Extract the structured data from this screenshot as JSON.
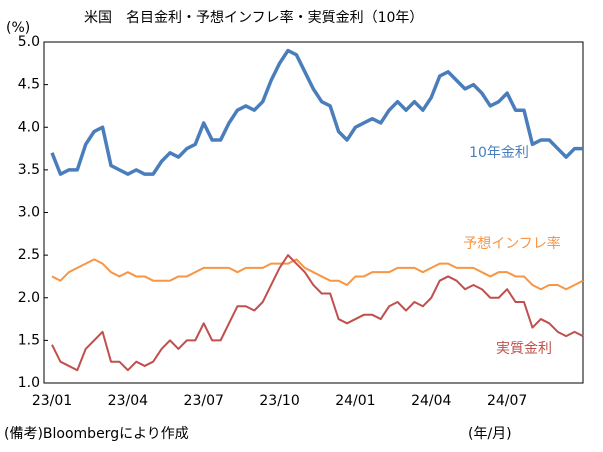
{
  "chart_data": {
    "type": "line",
    "title": "米国　名目金利・予想インフレ率・実質金利（10年）",
    "y_label": "(%)",
    "x_label": "(年/月)",
    "source": "(備考)Bloombergにより作成",
    "categories": [
      "23/01",
      null,
      null,
      null,
      null,
      null,
      null,
      null,
      null,
      "23/04",
      null,
      null,
      null,
      null,
      null,
      null,
      null,
      null,
      "23/07",
      null,
      null,
      null,
      null,
      null,
      null,
      null,
      null,
      "23/10",
      null,
      null,
      null,
      null,
      null,
      null,
      null,
      null,
      "24/01",
      null,
      null,
      null,
      null,
      null,
      null,
      null,
      null,
      "24/04",
      null,
      null,
      null,
      null,
      null,
      null,
      null,
      null,
      "24/07",
      null,
      null,
      null,
      null,
      null,
      null,
      null,
      null,
      null
    ],
    "ylim": [
      1.0,
      5.0
    ],
    "yticks": [
      {
        "value": 1.0,
        "label": "1.0"
      },
      1.5,
      {
        "value": 2.0,
        "label": "2.0"
      },
      2.5,
      {
        "value": 3.0,
        "label": "3.0"
      },
      3.5,
      {
        "value": 4.0,
        "label": "4.0"
      },
      4.5,
      {
        "value": 5.0,
        "label": "5.0"
      }
    ],
    "grid": false,
    "series": [
      {
        "name": "10年金利",
        "color": "#4a7ebb",
        "values": [
          3.7,
          3.45,
          3.5,
          3.5,
          3.8,
          3.95,
          4.0,
          3.55,
          3.5,
          3.45,
          3.5,
          3.45,
          3.45,
          3.6,
          3.7,
          3.65,
          3.75,
          3.8,
          4.05,
          3.85,
          3.85,
          4.05,
          4.2,
          4.25,
          4.2,
          4.3,
          4.55,
          4.75,
          4.9,
          4.85,
          4.65,
          4.45,
          4.3,
          4.25,
          3.95,
          3.85,
          4.0,
          4.05,
          4.1,
          4.05,
          4.2,
          4.3,
          4.2,
          4.3,
          4.2,
          4.35,
          4.6,
          4.65,
          4.55,
          4.45,
          4.5,
          4.4,
          4.25,
          4.3,
          4.4,
          4.2,
          4.2,
          3.8,
          3.85,
          3.85,
          3.75,
          3.65,
          3.75,
          3.75
        ]
      },
      {
        "name": "予想インフレ率",
        "color": "#f79646",
        "values": [
          2.25,
          2.2,
          2.3,
          2.35,
          2.4,
          2.45,
          2.4,
          2.3,
          2.25,
          2.3,
          2.25,
          2.25,
          2.2,
          2.2,
          2.2,
          2.25,
          2.25,
          2.3,
          2.35,
          2.35,
          2.35,
          2.35,
          2.3,
          2.35,
          2.35,
          2.35,
          2.4,
          2.4,
          2.4,
          2.45,
          2.35,
          2.3,
          2.25,
          2.2,
          2.2,
          2.15,
          2.25,
          2.25,
          2.3,
          2.3,
          2.3,
          2.35,
          2.35,
          2.35,
          2.3,
          2.35,
          2.4,
          2.4,
          2.35,
          2.35,
          2.35,
          2.3,
          2.25,
          2.3,
          2.3,
          2.25,
          2.25,
          2.15,
          2.1,
          2.15,
          2.15,
          2.1,
          2.15,
          2.2
        ]
      },
      {
        "name": "実質金利",
        "color": "#c0504d",
        "values": [
          1.45,
          1.25,
          1.2,
          1.15,
          1.4,
          1.5,
          1.6,
          1.25,
          1.25,
          1.15,
          1.25,
          1.2,
          1.25,
          1.4,
          1.5,
          1.4,
          1.5,
          1.5,
          1.7,
          1.5,
          1.5,
          1.7,
          1.9,
          1.9,
          1.85,
          1.95,
          2.15,
          2.35,
          2.5,
          2.4,
          2.3,
          2.15,
          2.05,
          2.05,
          1.75,
          1.7,
          1.75,
          1.8,
          1.8,
          1.75,
          1.9,
          1.95,
          1.85,
          1.95,
          1.9,
          2.0,
          2.2,
          2.25,
          2.2,
          2.1,
          2.15,
          2.1,
          2.0,
          2.0,
          2.1,
          1.95,
          1.95,
          1.65,
          1.75,
          1.7,
          1.6,
          1.55,
          1.6,
          1.55
        ]
      }
    ]
  }
}
